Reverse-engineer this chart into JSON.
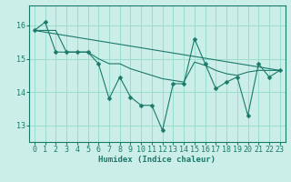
{
  "background_color": "#cceee8",
  "grid_color": "#99ddcc",
  "line_color": "#1a7a6a",
  "xlabel": "Humidex (Indice chaleur)",
  "xlim": [
    -0.5,
    23.5
  ],
  "ylim": [
    12.5,
    16.6
  ],
  "yticks": [
    13,
    14,
    15,
    16
  ],
  "xticks": [
    0,
    1,
    2,
    3,
    4,
    5,
    6,
    7,
    8,
    9,
    10,
    11,
    12,
    13,
    14,
    15,
    16,
    17,
    18,
    19,
    20,
    21,
    22,
    23
  ],
  "line_jagged": {
    "x": [
      0,
      1,
      2,
      3,
      4,
      5,
      6,
      7,
      8,
      9,
      10,
      11,
      12,
      13,
      14,
      15,
      16,
      17,
      18,
      19,
      20,
      21,
      22,
      23
    ],
    "y": [
      15.85,
      16.1,
      15.2,
      15.2,
      15.2,
      15.2,
      14.85,
      13.8,
      14.45,
      13.85,
      13.6,
      13.6,
      12.85,
      14.25,
      14.25,
      15.6,
      14.85,
      14.1,
      14.3,
      14.45,
      13.3,
      14.85,
      14.45,
      14.65
    ]
  },
  "line_smooth": {
    "x": [
      0,
      1,
      2,
      3,
      4,
      5,
      6,
      7,
      8,
      9,
      10,
      11,
      12,
      13,
      14,
      15,
      16,
      17,
      18,
      19,
      20,
      21,
      22,
      23
    ],
    "y": [
      15.85,
      15.85,
      15.85,
      15.2,
      15.2,
      15.2,
      15.0,
      14.85,
      14.85,
      14.7,
      14.6,
      14.5,
      14.4,
      14.35,
      14.3,
      14.9,
      14.8,
      14.65,
      14.55,
      14.5,
      14.6,
      14.65,
      14.65,
      14.65
    ]
  },
  "line_trend": {
    "x": [
      0,
      23
    ],
    "y": [
      15.85,
      14.65
    ]
  }
}
